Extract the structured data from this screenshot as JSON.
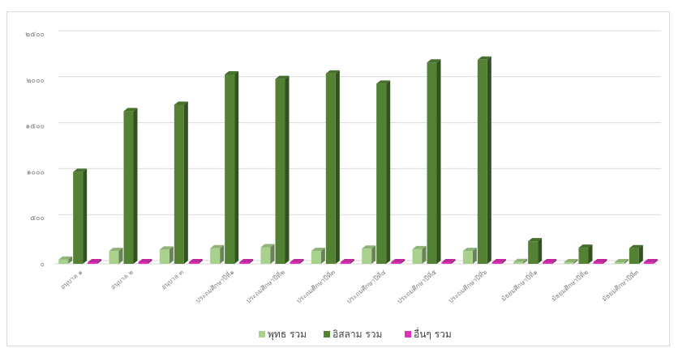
{
  "chart_data": {
    "type": "bar",
    "categories": [
      "อนุบาล ๑",
      "อนุบาล ๒",
      "อนุบาล ๓",
      "ประถมศึกษาปีที่๑",
      "ประถมศึกษาปีที่๒",
      "ประถมศึกษาปีที่๓",
      "ประถมศึกษาปีที่๔",
      "ประถมศึกษาปีที่๕",
      "ประถมศึกษาปีที่๖",
      "มัธยมศึกษาปีที่๑",
      "มัธยมศึกษาปีที่๒",
      "มัธยมศึกษาปีที่๓"
    ],
    "series": [
      {
        "name": "พุทธ รวม",
        "color": "#a9d18e",
        "values": [
          45,
          140,
          155,
          170,
          180,
          140,
          165,
          160,
          140,
          20,
          15,
          12
        ]
      },
      {
        "name": "อิสลาม รวม",
        "color": "#548235",
        "values": [
          1000,
          1660,
          1730,
          2060,
          2010,
          2070,
          1960,
          2190,
          2220,
          245,
          175,
          170
        ]
      },
      {
        "name": "อื่นๆ รวม",
        "color": "#e030b8",
        "values": [
          0,
          0,
          0,
          0,
          0,
          0,
          0,
          0,
          0,
          0,
          0,
          0
        ]
      }
    ],
    "ylim": [
      0,
      2500
    ],
    "yticks": [
      0,
      500,
      1000,
      1500,
      2000,
      2500
    ],
    "ytick_labels": [
      "๐",
      "๕๐๐",
      "๑๐๐๐",
      "๑๕๐๐",
      "๒๐๐๐",
      "๒๕๐๐"
    ],
    "grid": true,
    "legend_position": "bottom"
  }
}
